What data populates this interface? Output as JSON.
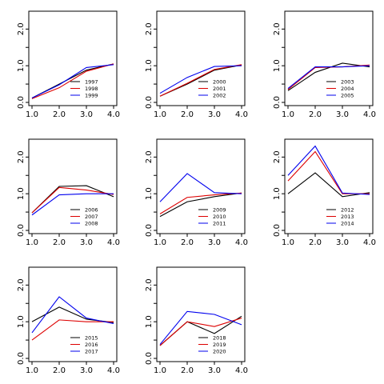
{
  "chart_data": [
    {
      "type": "line",
      "xlim": [
        1,
        4
      ],
      "ylim": [
        0,
        2.4
      ],
      "x_ticks": [
        "1.0",
        "2.0",
        "3.0",
        "4.0"
      ],
      "y_ticks": [
        "0.0",
        "1.0",
        "2.0"
      ],
      "series": [
        {
          "name": "1997",
          "color": "#000000",
          "x": [
            1,
            2,
            3,
            4
          ],
          "values": [
            0.12,
            0.5,
            0.88,
            1.05
          ]
        },
        {
          "name": "1998",
          "color": "#dd0000",
          "x": [
            1,
            2,
            3,
            4
          ],
          "values": [
            0.1,
            0.4,
            0.85,
            1.05
          ]
        },
        {
          "name": "1999",
          "color": "#0000ee",
          "x": [
            1,
            2,
            3,
            4
          ],
          "values": [
            0.12,
            0.48,
            0.95,
            1.03
          ]
        }
      ]
    },
    {
      "type": "line",
      "xlim": [
        1,
        4
      ],
      "ylim": [
        0,
        2.4
      ],
      "x_ticks": [
        "1.0",
        "2.0",
        "3.0",
        "4.0"
      ],
      "y_ticks": [
        "0.0",
        "1.0",
        "2.0"
      ],
      "series": [
        {
          "name": "2000",
          "color": "#000000",
          "x": [
            1,
            2,
            3,
            4
          ],
          "values": [
            0.17,
            0.5,
            0.88,
            1.02
          ]
        },
        {
          "name": "2001",
          "color": "#dd0000",
          "x": [
            1,
            2,
            3,
            4
          ],
          "values": [
            0.17,
            0.52,
            0.9,
            1.03
          ]
        },
        {
          "name": "2002",
          "color": "#0000ee",
          "x": [
            1,
            2,
            3,
            4
          ],
          "values": [
            0.25,
            0.68,
            0.98,
            1.0
          ]
        }
      ]
    },
    {
      "type": "line",
      "xlim": [
        1,
        4
      ],
      "ylim": [
        0,
        2.4
      ],
      "x_ticks": [
        "1.0",
        "2.0",
        "3.0",
        "4.0"
      ],
      "y_ticks": [
        "0.0",
        "1.0",
        "2.0"
      ],
      "series": [
        {
          "name": "2003",
          "color": "#000000",
          "x": [
            1,
            2,
            3,
            4
          ],
          "values": [
            0.32,
            0.82,
            1.07,
            0.97
          ]
        },
        {
          "name": "2004",
          "color": "#dd0000",
          "x": [
            1,
            2,
            3,
            4
          ],
          "values": [
            0.35,
            0.95,
            0.97,
            1.02
          ]
        },
        {
          "name": "2005",
          "color": "#0000ee",
          "x": [
            1,
            2,
            3,
            4
          ],
          "values": [
            0.38,
            0.97,
            0.97,
            1.0
          ]
        }
      ]
    },
    {
      "type": "line",
      "xlim": [
        1,
        4
      ],
      "ylim": [
        0,
        2.4
      ],
      "x_ticks": [
        "1.0",
        "2.0",
        "3.0",
        "4.0"
      ],
      "y_ticks": [
        "0.0",
        "1.0",
        "2.0"
      ],
      "series": [
        {
          "name": "2006",
          "color": "#000000",
          "x": [
            1,
            2,
            3,
            4
          ],
          "values": [
            0.48,
            1.2,
            1.22,
            0.92
          ]
        },
        {
          "name": "2007",
          "color": "#dd0000",
          "x": [
            1,
            2,
            3,
            4
          ],
          "values": [
            0.48,
            1.17,
            1.1,
            0.98
          ]
        },
        {
          "name": "2008",
          "color": "#0000ee",
          "x": [
            1,
            2,
            3,
            4
          ],
          "values": [
            0.42,
            0.97,
            1.0,
            1.0
          ]
        }
      ]
    },
    {
      "type": "line",
      "xlim": [
        1,
        4
      ],
      "ylim": [
        0,
        2.4
      ],
      "x_ticks": [
        "1.0",
        "2.0",
        "3.0",
        "4.0"
      ],
      "y_ticks": [
        "0.0",
        "1.0",
        "2.0"
      ],
      "series": [
        {
          "name": "2009",
          "color": "#000000",
          "x": [
            1,
            2,
            3,
            4
          ],
          "values": [
            0.38,
            0.78,
            0.92,
            1.02
          ]
        },
        {
          "name": "2010",
          "color": "#dd0000",
          "x": [
            1,
            2,
            3,
            4
          ],
          "values": [
            0.45,
            0.9,
            0.97,
            1.02
          ]
        },
        {
          "name": "2011",
          "color": "#0000ee",
          "x": [
            1,
            2,
            3,
            4
          ],
          "values": [
            0.78,
            1.55,
            1.03,
            1.0
          ]
        }
      ]
    },
    {
      "type": "line",
      "xlim": [
        1,
        4
      ],
      "ylim": [
        0,
        2.4
      ],
      "x_ticks": [
        "1.0",
        "2.0",
        "3.0",
        "4.0"
      ],
      "y_ticks": [
        "0.0",
        "1.0",
        "2.0"
      ],
      "series": [
        {
          "name": "2012",
          "color": "#000000",
          "x": [
            1,
            2,
            3,
            4
          ],
          "values": [
            1.0,
            1.57,
            0.92,
            1.03
          ]
        },
        {
          "name": "2013",
          "color": "#dd0000",
          "x": [
            1,
            2,
            3,
            4
          ],
          "values": [
            1.35,
            2.15,
            1.0,
            1.0
          ]
        },
        {
          "name": "2014",
          "color": "#0000ee",
          "x": [
            1,
            2,
            3,
            4
          ],
          "values": [
            1.5,
            2.3,
            1.02,
            0.98
          ]
        }
      ]
    },
    {
      "type": "line",
      "xlim": [
        1,
        4
      ],
      "ylim": [
        0,
        2.4
      ],
      "x_ticks": [
        "1.0",
        "2.0",
        "3.0",
        "4.0"
      ],
      "y_ticks": [
        "0.0",
        "1.0",
        "2.0"
      ],
      "series": [
        {
          "name": "2015",
          "color": "#000000",
          "x": [
            1,
            2,
            3,
            4
          ],
          "values": [
            1.0,
            1.4,
            1.07,
            0.98
          ]
        },
        {
          "name": "2016",
          "color": "#dd0000",
          "x": [
            1,
            2,
            3,
            4
          ],
          "values": [
            0.5,
            1.05,
            1.0,
            1.0
          ]
        },
        {
          "name": "2017",
          "color": "#0000ee",
          "x": [
            1,
            2,
            3,
            4
          ],
          "values": [
            0.7,
            1.68,
            1.1,
            0.95
          ]
        }
      ]
    },
    {
      "type": "line",
      "xlim": [
        1,
        4
      ],
      "ylim": [
        0,
        2.4
      ],
      "x_ticks": [
        "1.0",
        "2.0",
        "3.0",
        "4.0"
      ],
      "y_ticks": [
        "0.0",
        "1.0",
        "2.0"
      ],
      "series": [
        {
          "name": "2018",
          "color": "#000000",
          "x": [
            1,
            2,
            3,
            4
          ],
          "values": [
            0.35,
            1.0,
            0.68,
            1.15
          ]
        },
        {
          "name": "2019",
          "color": "#dd0000",
          "x": [
            1,
            2,
            3,
            4
          ],
          "values": [
            0.35,
            1.0,
            0.87,
            1.1
          ]
        },
        {
          "name": "2020",
          "color": "#0000ee",
          "x": [
            1,
            2,
            3,
            4
          ],
          "values": [
            0.38,
            1.28,
            1.2,
            0.92
          ]
        }
      ]
    }
  ]
}
